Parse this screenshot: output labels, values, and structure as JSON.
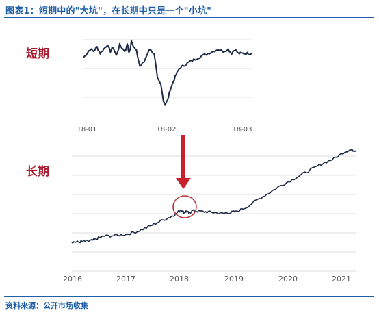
{
  "title": "图表1：短期中的\"大坑\"，在长期中只是一个\"小坑\"",
  "source": "资料来源：公开市场收集",
  "colors": {
    "title": "#1f5fa8",
    "label": "#a8192e",
    "line": "#1c2a45",
    "arrow": "#c8202d",
    "circle": "#b8343a",
    "grid": "#dddddd"
  },
  "chart_data": [
    {
      "type": "line",
      "panel_label": "短期",
      "x_ticks": [
        "18-01",
        "18-02",
        "18-03"
      ],
      "xlim": [
        "18-01",
        "18-03"
      ],
      "grid": true,
      "series": [
        {
          "x": [
            0,
            0.04,
            0.08,
            0.12,
            0.16,
            0.2,
            0.24,
            0.28,
            0.32,
            0.35,
            0.39,
            0.43,
            0.47,
            0.5,
            0.52,
            0.54,
            0.56,
            0.57,
            0.58,
            0.6,
            0.63,
            0.67,
            0.72,
            0.78,
            0.84,
            0.88,
            0.92,
            0.95,
            0.97,
            1.0,
            1.03,
            1.07,
            1.1,
            1.14,
            1.18,
            1.22,
            1.26,
            1.31,
            1.36,
            1.42,
            1.48,
            1.54,
            1.6,
            1.66,
            1.72,
            1.76,
            1.8,
            1.84,
            1.88,
            1.92,
            1.96,
            2.0
          ],
          "y": [
            95,
            97,
            99,
            98,
            100,
            97,
            99,
            101,
            98,
            100,
            96,
            101,
            99,
            98,
            102,
            97,
            100,
            103,
            102,
            100,
            98,
            91,
            93,
            99,
            97,
            85,
            82,
            75,
            73,
            75,
            80,
            84,
            87,
            90,
            91,
            92,
            93,
            94,
            95,
            96,
            97,
            98,
            99,
            98,
            99,
            97,
            99,
            97,
            97,
            97,
            97,
            97
          ]
        }
      ]
    },
    {
      "type": "line",
      "panel_label": "长期",
      "x_ticks": [
        "2016",
        "2017",
        "2018",
        "2019",
        "2020",
        "2021"
      ],
      "xlim": [
        2016,
        2021.2
      ],
      "grid": true,
      "annotations": [
        "downward red arrow pointing to early 2018",
        "red circle around early-2018 dip"
      ],
      "series": [
        {
          "x": [
            2016.0,
            2016.1,
            2016.2,
            2016.3,
            2016.4,
            2016.5,
            2016.6,
            2016.8,
            2017.0,
            2017.2,
            2017.4,
            2017.6,
            2017.8,
            2017.9,
            2018.0,
            2018.05,
            2018.1,
            2018.15,
            2018.2,
            2018.3,
            2018.45,
            2018.6,
            2018.75,
            2018.9,
            2019.0,
            2019.2,
            2019.4,
            2019.6,
            2019.8,
            2020.0,
            2020.2,
            2020.4,
            2020.6,
            2020.8,
            2021.0,
            2021.1,
            2021.2
          ],
          "y": [
            4.0,
            3.95,
            4.05,
            4.1,
            4.3,
            4.7,
            5.0,
            5.1,
            5.3,
            5.8,
            6.6,
            7.5,
            8.3,
            8.8,
            9.6,
            9.1,
            9.3,
            8.9,
            9.4,
            9.3,
            9.2,
            9.1,
            8.9,
            9.1,
            9.2,
            10.0,
            11.3,
            12.4,
            13.6,
            14.6,
            15.6,
            16.6,
            17.6,
            18.4,
            19.6,
            19.9,
            19.8
          ]
        }
      ]
    }
  ]
}
